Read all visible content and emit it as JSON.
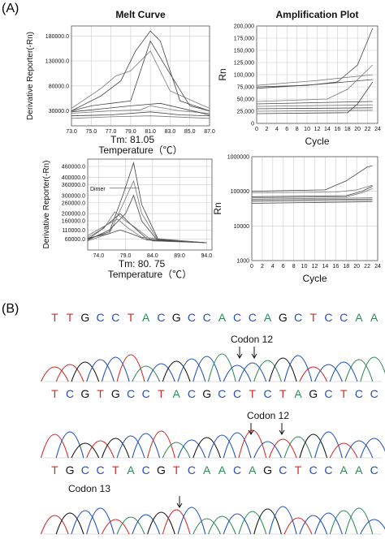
{
  "panel_labels": {
    "a": "(A)",
    "b": "(B)"
  },
  "chart_data": [
    {
      "type": "line",
      "title": "Melt Curve",
      "xlabel": "Temperature（℃）",
      "ylabel": "Derivative Reporter(-Rn)",
      "annotation": "Tm: 81.05",
      "xlim": [
        73.0,
        87.0
      ],
      "ylim": [
        0,
        200000
      ],
      "x_ticks": [
        "73.0",
        "75.0",
        "77.0",
        "79.0",
        "81.0",
        "83.0",
        "85.0",
        "87.0"
      ],
      "y_ticks": [
        "30000.0",
        "80000.0",
        "130000.0",
        "180000.0"
      ],
      "series": [
        {
          "values": [
            [
              73,
              30000
            ],
            [
              76,
              60000
            ],
            [
              78,
              90000
            ],
            [
              79.5,
              150000
            ],
            [
              81,
              190000
            ],
            [
              82,
              170000
            ],
            [
              84,
              50000
            ],
            [
              87,
              30000
            ]
          ]
        },
        {
          "values": [
            [
              73,
              35000
            ],
            [
              76,
              75000
            ],
            [
              77.5,
              100000
            ],
            [
              79,
              110000
            ],
            [
              81,
              150000
            ],
            [
              83,
              70000
            ],
            [
              87,
              35000
            ]
          ]
        },
        {
          "values": [
            [
              73,
              30000
            ],
            [
              75,
              40000
            ],
            [
              77,
              45000
            ],
            [
              79,
              50000
            ],
            [
              81,
              170000
            ],
            [
              82.5,
              120000
            ],
            [
              85,
              40000
            ],
            [
              87,
              30000
            ]
          ]
        },
        {
          "values": [
            [
              73,
              25000
            ],
            [
              77,
              30000
            ],
            [
              80,
              32000
            ],
            [
              81,
              40000
            ],
            [
              84,
              30000
            ],
            [
              87,
              25000
            ]
          ]
        },
        {
          "values": [
            [
              73,
              20000
            ],
            [
              77,
              22000
            ],
            [
              81,
              28000
            ],
            [
              84,
              22000
            ],
            [
              87,
              20000
            ]
          ]
        },
        {
          "values": [
            [
              73,
              15000
            ],
            [
              77,
              18000
            ],
            [
              81,
              20000
            ],
            [
              87,
              15000
            ]
          ]
        },
        {
          "values": [
            [
              73,
              28000
            ],
            [
              79,
              40000
            ],
            [
              82,
              45000
            ],
            [
              87,
              22000
            ]
          ]
        }
      ]
    },
    {
      "type": "line",
      "title": "Amplification Plot",
      "xlabel": "Cycle",
      "ylabel": "Rn",
      "xlim": [
        0,
        24
      ],
      "ylim": [
        0,
        200000
      ],
      "x_ticks": [
        "0",
        "2",
        "4",
        "6",
        "8",
        "10",
        "12",
        "14",
        "16",
        "18",
        "20",
        "22",
        "24"
      ],
      "y_ticks": [
        "0",
        "25,000",
        "50,000",
        "75,000",
        "100,000",
        "125,000",
        "150,000",
        "175,000",
        "200,000"
      ],
      "series": [
        {
          "values": [
            [
              0,
              75000
            ],
            [
              10,
              78000
            ],
            [
              16,
              85000
            ],
            [
              20,
              120000
            ],
            [
              23,
              195000
            ]
          ]
        },
        {
          "values": [
            [
              0,
              78000
            ],
            [
              12,
              88000
            ],
            [
              23,
              100000
            ]
          ]
        },
        {
          "values": [
            [
              0,
              72000
            ],
            [
              12,
              80000
            ],
            [
              23,
              90000
            ]
          ]
        },
        {
          "values": [
            [
              0,
              45000
            ],
            [
              14,
              50000
            ],
            [
              18,
              70000
            ],
            [
              23,
              120000
            ]
          ]
        },
        {
          "values": [
            [
              0,
              40000
            ],
            [
              23,
              45000
            ]
          ]
        },
        {
          "values": [
            [
              0,
              35000
            ],
            [
              23,
              38000
            ]
          ]
        },
        {
          "values": [
            [
              0,
              30000
            ],
            [
              23,
              32000
            ]
          ]
        },
        {
          "values": [
            [
              0,
              25000
            ],
            [
              23,
              27000
            ]
          ]
        },
        {
          "values": [
            [
              0,
              20000
            ],
            [
              18,
              22000
            ],
            [
              20,
              40000
            ],
            [
              23,
              85000
            ]
          ]
        }
      ]
    },
    {
      "type": "line",
      "title": "",
      "xlabel": "Temperature（℃）",
      "ylabel": "Derivative Reporter(-Rn)",
      "annotation": "Tm: 80. 75",
      "dimer_label": "Dimer",
      "xlim": [
        72.0,
        95.0
      ],
      "ylim": [
        0,
        500000
      ],
      "x_ticks": [
        "74.0",
        "79.0",
        "84.0",
        "89.0",
        "94.0"
      ],
      "y_ticks": [
        "60000.0",
        "110000.0",
        "160000.0",
        "200000.0",
        "260000.0",
        "300000.0",
        "360000.0",
        "400000.0",
        "460000.0"
      ],
      "series": [
        {
          "values": [
            [
              72,
              60000
            ],
            [
              76,
              100000
            ],
            [
              78.5,
              300000
            ],
            [
              80.5,
              480000
            ],
            [
              82,
              250000
            ],
            [
              85,
              60000
            ],
            [
              94,
              40000
            ]
          ]
        },
        {
          "values": [
            [
              72,
              50000
            ],
            [
              76,
              90000
            ],
            [
              78.5,
              250000
            ],
            [
              80.5,
              380000
            ],
            [
              82,
              200000
            ],
            [
              85,
              55000
            ],
            [
              94,
              40000
            ]
          ]
        },
        {
          "values": [
            [
              72,
              55000
            ],
            [
              76,
              110000
            ],
            [
              79,
              200000
            ],
            [
              80.5,
              300000
            ],
            [
              82,
              160000
            ],
            [
              85,
              50000
            ],
            [
              94,
              40000
            ]
          ]
        },
        {
          "values": [
            [
              72,
              70000
            ],
            [
              75,
              120000
            ],
            [
              77,
              210000
            ],
            [
              79,
              160000
            ],
            [
              81,
              120000
            ],
            [
              84,
              50000
            ],
            [
              94,
              40000
            ]
          ]
        },
        {
          "values": [
            [
              72,
              60000
            ],
            [
              74,
              100000
            ],
            [
              76,
              150000
            ],
            [
              78,
              200000
            ],
            [
              80,
              140000
            ],
            [
              83,
              60000
            ],
            [
              94,
              40000
            ]
          ]
        },
        {
          "values": [
            [
              72,
              80000
            ],
            [
              75,
              130000
            ],
            [
              77.5,
              170000
            ],
            [
              79.5,
              120000
            ],
            [
              82,
              70000
            ],
            [
              94,
              40000
            ]
          ]
        },
        {
          "values": [
            [
              72,
              65000
            ],
            [
              76,
              90000
            ],
            [
              78,
              110000
            ],
            [
              80,
              90000
            ],
            [
              83,
              55000
            ],
            [
              94,
              40000
            ]
          ]
        }
      ]
    },
    {
      "type": "line",
      "title": "",
      "xlabel": "Cycle",
      "ylabel": "Rn",
      "scale": "log",
      "xlim": [
        0,
        24
      ],
      "ylim": [
        1000,
        1000000
      ],
      "x_ticks": [
        "0",
        "2",
        "4",
        "6",
        "8",
        "10",
        "12",
        "14",
        "16",
        "18",
        "20",
        "22",
        "24"
      ],
      "y_ticks": [
        "1000",
        "10000",
        "100000",
        "1000000"
      ],
      "series": [
        {
          "values": [
            [
              0,
              100000
            ],
            [
              14,
              110000
            ],
            [
              18,
              200000
            ],
            [
              22,
              500000
            ],
            [
              23,
              550000
            ]
          ]
        },
        {
          "values": [
            [
              0,
              90000
            ],
            [
              16,
              95000
            ],
            [
              20,
              110000
            ],
            [
              23,
              150000
            ]
          ]
        },
        {
          "values": [
            [
              0,
              70000
            ],
            [
              18,
              75000
            ],
            [
              21,
              100000
            ],
            [
              23,
              140000
            ]
          ]
        },
        {
          "values": [
            [
              0,
              60000
            ],
            [
              23,
              65000
            ]
          ]
        },
        {
          "values": [
            [
              0,
              55000
            ],
            [
              23,
              60000
            ]
          ]
        },
        {
          "values": [
            [
              0,
              50000
            ],
            [
              23,
              55000
            ]
          ]
        },
        {
          "values": [
            [
              0,
              45000
            ],
            [
              23,
              50000
            ]
          ]
        },
        {
          "values": [
            [
              0,
              65000
            ],
            [
              18,
              70000
            ],
            [
              21,
              90000
            ],
            [
              23,
              120000
            ]
          ]
        }
      ]
    }
  ],
  "sequencing": {
    "tracks": [
      {
        "sequence": [
          "T",
          "T",
          "G",
          "C",
          "C",
          "T",
          "A",
          "C",
          "G",
          "C",
          "C",
          "A",
          "C",
          "C",
          "A",
          "G",
          "C",
          "T",
          "C",
          "C",
          "A",
          "A"
        ],
        "codon_label": "Codon 12"
      },
      {
        "sequence": [
          "T",
          "C",
          "G",
          "T",
          "G",
          "C",
          "C",
          "T",
          "A",
          "C",
          "G",
          "C",
          "C",
          "T",
          "C",
          "T",
          "A",
          "G",
          "C",
          "T",
          "C",
          "C"
        ],
        "codon_label": "Codon 12"
      },
      {
        "sequence": [
          "T",
          "G",
          "C",
          "C",
          "T",
          "A",
          "C",
          "G",
          "T",
          "C",
          "A",
          "A",
          "C",
          "A",
          "G",
          "C",
          "T",
          "C",
          "C",
          "A",
          "A",
          "C"
        ],
        "codon_label": "Codon 13"
      }
    ],
    "colors": {
      "A": "#2e8b57",
      "C": "#1f4fbf",
      "G": "#111111",
      "T": "#d62828"
    }
  }
}
